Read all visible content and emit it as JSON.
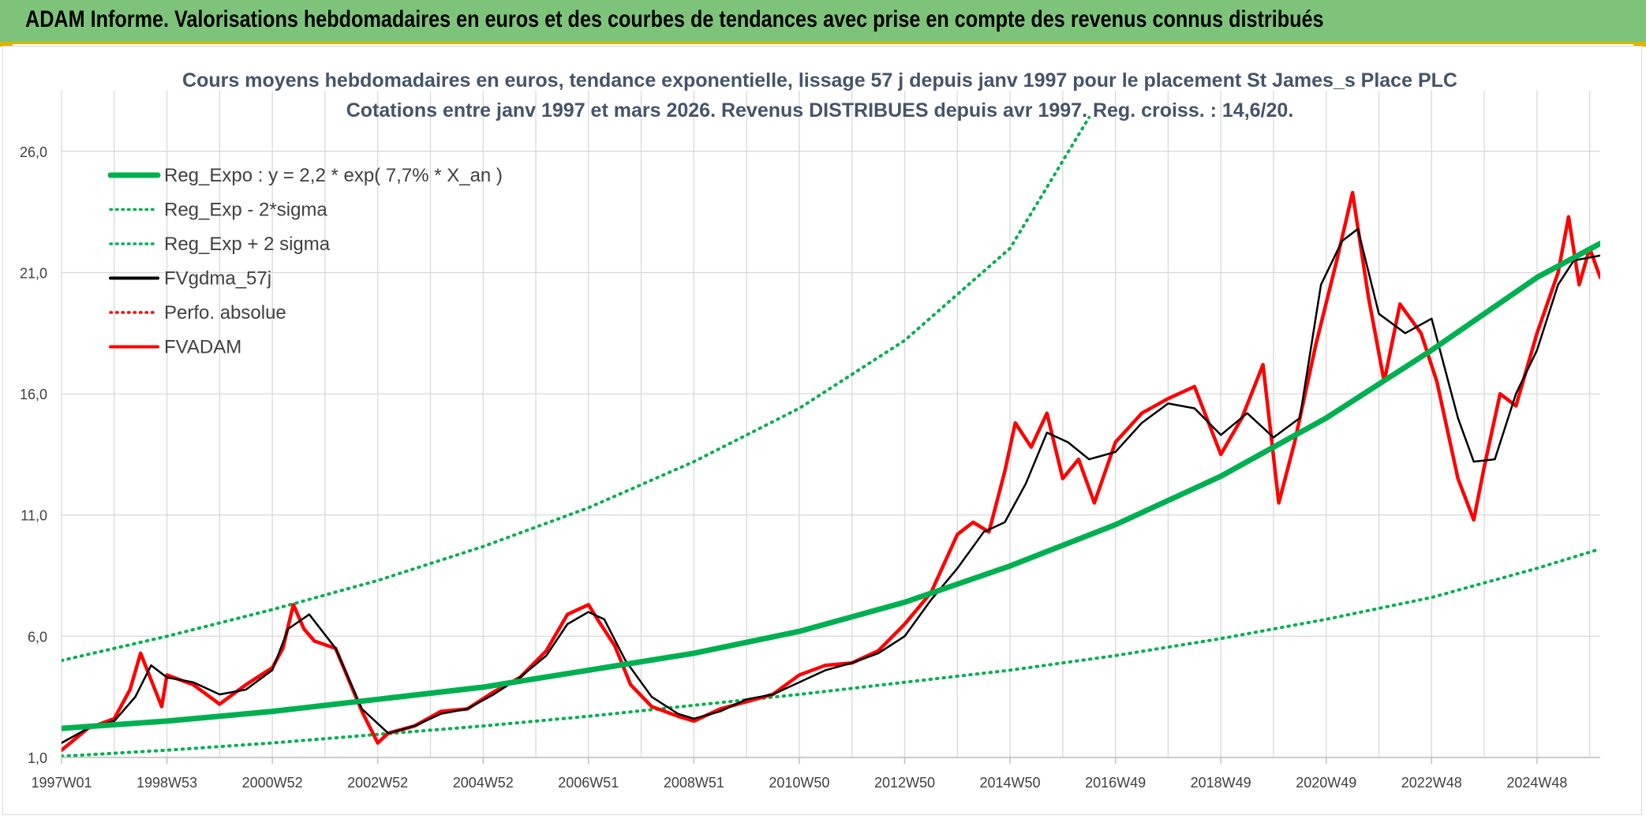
{
  "banner": {
    "title": "ADAM Informe. Valorisations hebdomadaires en euros et des courbes de tendances avec prise en compte des revenus connus distribués"
  },
  "colors": {
    "banner_bg": "#7dc47a",
    "trend_green": "#00b050",
    "series_red": "#ff0000",
    "series_black": "#000000",
    "title_text": "#44546a"
  },
  "chart_data": {
    "type": "line",
    "title_line1": "Cours moyens hebdomadaires en euros, tendance exponentielle, lissage 57 j depuis janv 1997 pour le placement St James_s Place PLC",
    "title_line2": "Cotations entre janv 1997 et mars 2026. Revenus DISTRIBUES depuis avr 1997. Reg. croiss. : 14,6/20.",
    "xlabel": "",
    "ylabel": "",
    "ylim": [
      1,
      28.5
    ],
    "xlim": [
      1997.0,
      2026.2
    ],
    "y_ticks": [
      "1,0",
      "6,0",
      "11,0",
      "16,0",
      "21,0",
      "26,0"
    ],
    "y_tick_values": [
      1,
      6,
      11,
      16,
      21,
      26
    ],
    "x_ticks": [
      "1997W01",
      "1998W53",
      "2000W52",
      "2002W52",
      "2004W52",
      "2006W51",
      "2008W51",
      "2010W50",
      "2012W50",
      "2014W50",
      "2016W49",
      "2018W49",
      "2020W49",
      "2022W48",
      "2024W48"
    ],
    "x_tick_values": [
      1997.0,
      1999.0,
      2001.0,
      2003.0,
      2005.0,
      2007.0,
      2009.0,
      2011.0,
      2013.0,
      2015.0,
      2017.0,
      2019.0,
      2021.0,
      2023.0,
      2025.0
    ],
    "grid": true,
    "legend_position": "top-left",
    "legend": [
      {
        "label": "Reg_Expo : y = 2,2 * exp( 7,7% *  X_an )",
        "style": "thick-solid",
        "color": "#00b050"
      },
      {
        "label": "Reg_Exp - 2*sigma",
        "style": "dotted",
        "color": "#00b050"
      },
      {
        "label": "Reg_Exp + 2 sigma",
        "style": "dotted",
        "color": "#00b050"
      },
      {
        "label": "FVgdma_57j",
        "style": "solid",
        "color": "#000000"
      },
      {
        "label": "Perfo. absolue",
        "style": "dotted",
        "color": "#ff0000"
      },
      {
        "label": "FVADAM",
        "style": "solid",
        "color": "#ff0000"
      }
    ],
    "series": [
      {
        "name": "Reg_Expo : y = 2,2 * exp( 7,7% *  X_an )",
        "x": [
          1997.0,
          1999.0,
          2001.0,
          2003.0,
          2005.0,
          2007.0,
          2009.0,
          2011.0,
          2013.0,
          2015.0,
          2017.0,
          2019.0,
          2021.0,
          2023.0,
          2025.0,
          2026.2
        ],
        "values": [
          2.2,
          2.5,
          2.9,
          3.4,
          3.9,
          4.6,
          5.3,
          6.2,
          7.4,
          8.9,
          10.6,
          12.6,
          15.0,
          17.8,
          20.8,
          22.2
        ]
      },
      {
        "name": "Reg_Exp - 2*sigma",
        "x": [
          1997.0,
          1999.0,
          2001.0,
          2003.0,
          2005.0,
          2007.0,
          2009.0,
          2011.0,
          2013.0,
          2015.0,
          2017.0,
          2019.0,
          2021.0,
          2023.0,
          2025.0,
          2026.2
        ],
        "values": [
          1.05,
          1.3,
          1.6,
          1.95,
          2.3,
          2.7,
          3.15,
          3.6,
          4.1,
          4.6,
          5.2,
          5.9,
          6.7,
          7.6,
          8.8,
          9.6
        ]
      },
      {
        "name": "Reg_Exp + 2 sigma",
        "x": [
          1997.0,
          1999.0,
          2001.0,
          2003.0,
          2005.0,
          2007.0,
          2009.0,
          2011.0,
          2013.0,
          2015.0,
          2016.5
        ],
        "values": [
          5.0,
          6.0,
          7.1,
          8.3,
          9.7,
          11.3,
          13.2,
          15.4,
          18.2,
          22.0,
          27.4
        ]
      },
      {
        "name": "FVgdma_57j",
        "x": [
          1997.0,
          1997.5,
          1998.0,
          1998.4,
          1998.7,
          1999.0,
          1999.5,
          2000.0,
          2000.5,
          2001.0,
          2001.3,
          2001.7,
          2002.2,
          2002.7,
          2003.2,
          2003.7,
          2004.2,
          2004.7,
          2005.2,
          2005.7,
          2006.2,
          2006.6,
          2007.0,
          2007.3,
          2007.7,
          2008.2,
          2008.7,
          2009.0,
          2009.5,
          2010.0,
          2010.5,
          2011.0,
          2011.5,
          2012.0,
          2012.5,
          2013.0,
          2013.5,
          2014.0,
          2014.5,
          2014.9,
          2015.3,
          2015.7,
          2016.1,
          2016.5,
          2017.0,
          2017.5,
          2018.0,
          2018.5,
          2019.0,
          2019.5,
          2020.0,
          2020.5,
          2020.9,
          2021.3,
          2021.6,
          2022.0,
          2022.5,
          2023.0,
          2023.5,
          2023.8,
          2024.2,
          2024.6,
          2025.0,
          2025.4,
          2025.7,
          2026.2
        ],
        "values": [
          1.6,
          2.2,
          2.5,
          3.5,
          4.8,
          4.3,
          4.1,
          3.6,
          3.8,
          4.6,
          6.3,
          6.9,
          5.5,
          3.0,
          2.0,
          2.3,
          2.8,
          3.0,
          3.6,
          4.3,
          5.2,
          6.5,
          7.0,
          6.7,
          5.0,
          3.5,
          2.8,
          2.6,
          2.9,
          3.4,
          3.6,
          4.1,
          4.6,
          4.9,
          5.3,
          6.0,
          7.5,
          8.8,
          10.3,
          10.7,
          12.3,
          14.4,
          14.0,
          13.3,
          13.6,
          14.8,
          15.6,
          15.4,
          14.3,
          15.2,
          14.2,
          15.0,
          20.5,
          22.3,
          22.8,
          19.3,
          18.5,
          19.1,
          15.0,
          13.2,
          13.3,
          16.0,
          17.8,
          20.5,
          21.5,
          21.7
        ]
      },
      {
        "name": "FVADAM",
        "x": [
          1997.0,
          1997.5,
          1998.0,
          1998.3,
          1998.5,
          1998.7,
          1998.9,
          1999.0,
          1999.5,
          2000.0,
          2000.5,
          2001.0,
          2001.2,
          2001.4,
          2001.6,
          2001.8,
          2002.2,
          2002.7,
          2003.0,
          2003.2,
          2003.7,
          2004.2,
          2004.7,
          2005.2,
          2005.7,
          2006.2,
          2006.6,
          2007.0,
          2007.2,
          2007.5,
          2007.8,
          2008.2,
          2008.7,
          2009.0,
          2009.5,
          2010.0,
          2010.5,
          2011.0,
          2011.5,
          2012.0,
          2012.5,
          2013.0,
          2013.5,
          2014.0,
          2014.3,
          2014.6,
          2014.9,
          2015.1,
          2015.4,
          2015.7,
          2016.0,
          2016.3,
          2016.6,
          2017.0,
          2017.5,
          2018.0,
          2018.5,
          2019.0,
          2019.4,
          2019.8,
          2020.1,
          2020.4,
          2020.8,
          2021.2,
          2021.5,
          2021.8,
          2022.1,
          2022.4,
          2022.8,
          2023.1,
          2023.5,
          2023.8,
          2024.0,
          2024.3,
          2024.6,
          2025.0,
          2025.4,
          2025.6,
          2025.8,
          2026.0,
          2026.2
        ],
        "values": [
          1.3,
          2.2,
          2.6,
          3.8,
          5.3,
          4.2,
          3.1,
          4.4,
          4.0,
          3.2,
          4.0,
          4.7,
          5.5,
          7.3,
          6.3,
          5.8,
          5.5,
          2.9,
          1.6,
          2.0,
          2.3,
          2.9,
          3.0,
          3.7,
          4.3,
          5.4,
          6.9,
          7.3,
          6.6,
          5.6,
          4.0,
          3.1,
          2.7,
          2.5,
          3.0,
          3.3,
          3.6,
          4.4,
          4.8,
          4.9,
          5.4,
          6.5,
          7.8,
          10.2,
          10.7,
          10.3,
          12.8,
          14.8,
          13.8,
          15.2,
          12.5,
          13.3,
          11.5,
          14.0,
          15.2,
          15.8,
          16.3,
          13.5,
          15.0,
          17.2,
          11.5,
          14.0,
          18.0,
          21.5,
          24.3,
          20.0,
          16.5,
          19.7,
          18.5,
          16.5,
          12.5,
          10.8,
          13.0,
          16.0,
          15.5,
          18.5,
          21.0,
          23.3,
          20.5,
          22.0,
          20.8
        ]
      }
    ]
  }
}
